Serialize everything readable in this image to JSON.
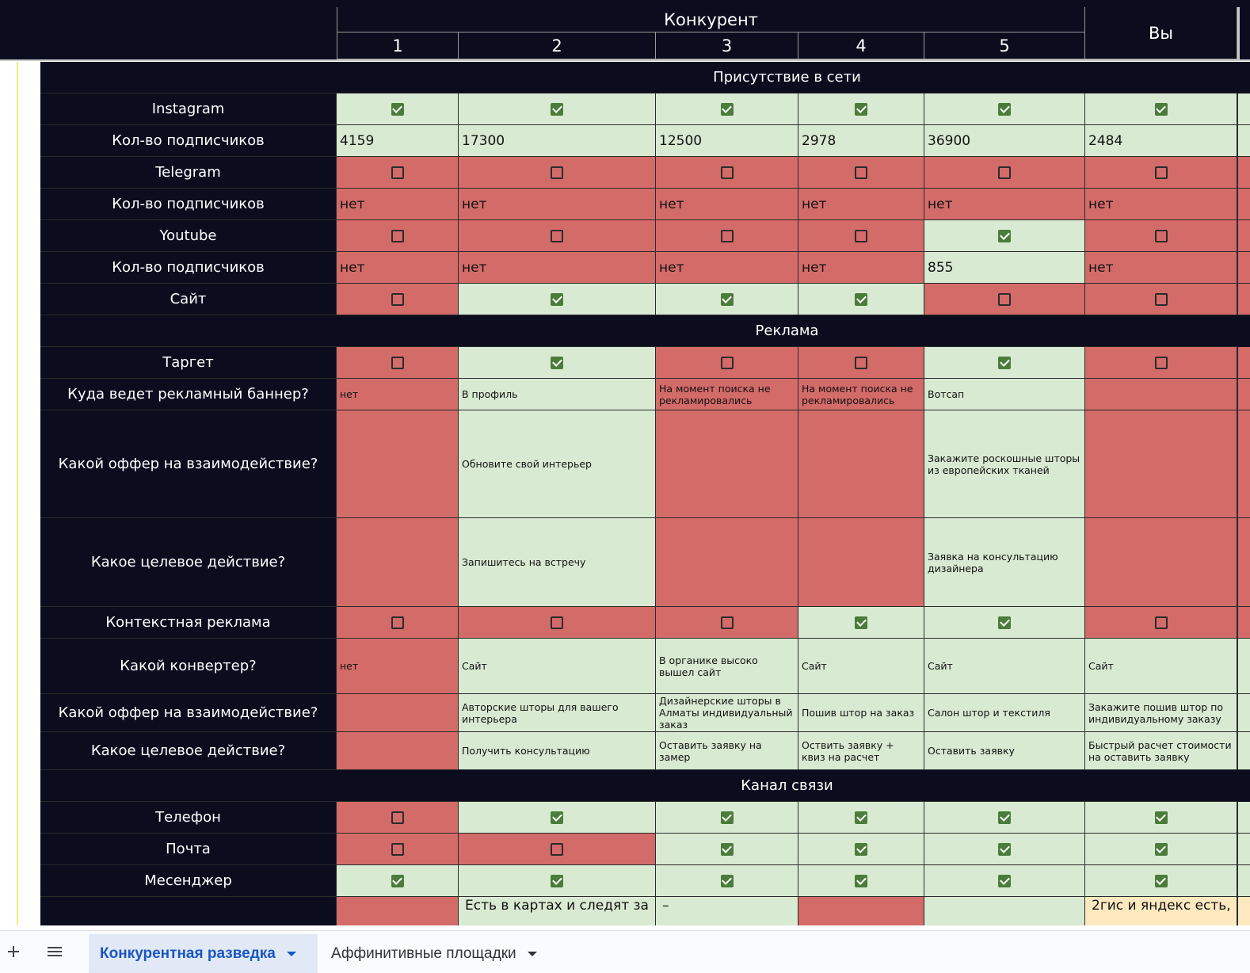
{
  "header": {
    "group_label": "Конкурент",
    "columns": [
      "1",
      "2",
      "3",
      "4",
      "5"
    ],
    "you_label": "Вы"
  },
  "rows": [
    {
      "type": "section",
      "label": "Присутствие в сети"
    },
    {
      "type": "row",
      "label": "Instagram",
      "kind": "check",
      "cells": [
        {
          "v": true,
          "c": "g"
        },
        {
          "v": true,
          "c": "g"
        },
        {
          "v": true,
          "c": "g"
        },
        {
          "v": true,
          "c": "g"
        },
        {
          "v": true,
          "c": "g"
        },
        {
          "v": true,
          "c": "g"
        }
      ]
    },
    {
      "type": "row",
      "label": "Кол-во подписчиков",
      "kind": "num",
      "cells": [
        {
          "t": "4159",
          "c": "g"
        },
        {
          "t": "17300",
          "c": "g"
        },
        {
          "t": "12500",
          "c": "g"
        },
        {
          "t": "2978",
          "c": "g"
        },
        {
          "t": "36900",
          "c": "g"
        },
        {
          "t": "2484",
          "c": "g"
        }
      ]
    },
    {
      "type": "row",
      "label": "Telegram",
      "kind": "check",
      "cells": [
        {
          "v": false,
          "c": "r"
        },
        {
          "v": false,
          "c": "r"
        },
        {
          "v": false,
          "c": "r"
        },
        {
          "v": false,
          "c": "r"
        },
        {
          "v": false,
          "c": "r"
        },
        {
          "v": false,
          "c": "r"
        }
      ]
    },
    {
      "type": "row",
      "label": "Кол-во подписчиков",
      "kind": "num",
      "cells": [
        {
          "t": "нет",
          "c": "r"
        },
        {
          "t": "нет",
          "c": "r"
        },
        {
          "t": "нет",
          "c": "r"
        },
        {
          "t": "нет",
          "c": "r"
        },
        {
          "t": "нет",
          "c": "r"
        },
        {
          "t": "нет",
          "c": "r"
        }
      ]
    },
    {
      "type": "row",
      "label": "Youtube",
      "kind": "check",
      "cells": [
        {
          "v": false,
          "c": "r"
        },
        {
          "v": false,
          "c": "r"
        },
        {
          "v": false,
          "c": "r"
        },
        {
          "v": false,
          "c": "r"
        },
        {
          "v": true,
          "c": "g"
        },
        {
          "v": false,
          "c": "r"
        }
      ]
    },
    {
      "type": "row",
      "label": "Кол-во подписчиков",
      "kind": "num",
      "cells": [
        {
          "t": "нет",
          "c": "r"
        },
        {
          "t": "нет",
          "c": "r"
        },
        {
          "t": "нет",
          "c": "r"
        },
        {
          "t": "нет",
          "c": "r"
        },
        {
          "t": "855",
          "c": "g"
        },
        {
          "t": "нет",
          "c": "r"
        }
      ]
    },
    {
      "type": "row",
      "label": "Сайт",
      "kind": "check",
      "cells": [
        {
          "v": false,
          "c": "r"
        },
        {
          "v": true,
          "c": "g"
        },
        {
          "v": true,
          "c": "g"
        },
        {
          "v": true,
          "c": "g"
        },
        {
          "v": false,
          "c": "r"
        },
        {
          "v": false,
          "c": "r"
        }
      ]
    },
    {
      "type": "section",
      "label": "Реклама"
    },
    {
      "type": "row",
      "label": "Таргет",
      "kind": "check",
      "cells": [
        {
          "v": false,
          "c": "r"
        },
        {
          "v": true,
          "c": "g"
        },
        {
          "v": false,
          "c": "r"
        },
        {
          "v": false,
          "c": "r"
        },
        {
          "v": true,
          "c": "g"
        },
        {
          "v": false,
          "c": "r"
        }
      ]
    },
    {
      "type": "row",
      "label": "Куда ведет рекламный баннер?",
      "kind": "small",
      "cells": [
        {
          "t": "нет",
          "c": "r"
        },
        {
          "t": "В профиль",
          "c": "g"
        },
        {
          "t": "На момент поиска не рекламировались",
          "c": "r"
        },
        {
          "t": "На момент поиска не рекламировались",
          "c": "r"
        },
        {
          "t": "Вотсап",
          "c": "g"
        },
        {
          "t": "",
          "c": "r"
        }
      ]
    },
    {
      "type": "row",
      "label": "Какой оффер на взаимодействие?",
      "kind": "small",
      "cells": [
        {
          "t": "",
          "c": "r"
        },
        {
          "t": "Обновите свой интерьер",
          "c": "g"
        },
        {
          "t": "",
          "c": "r"
        },
        {
          "t": "",
          "c": "r"
        },
        {
          "t": "Закажите роскошные шторы из европейских тканей",
          "c": "g"
        },
        {
          "t": "",
          "c": "r"
        }
      ]
    },
    {
      "type": "row",
      "label": "Какое целевое действие?",
      "kind": "small",
      "cells": [
        {
          "t": "",
          "c": "r"
        },
        {
          "t": "Запишитесь на встречу",
          "c": "g"
        },
        {
          "t": "",
          "c": "r"
        },
        {
          "t": "",
          "c": "r"
        },
        {
          "t": "Заявка на консультацию дизайнера",
          "c": "g"
        },
        {
          "t": "",
          "c": "r"
        }
      ]
    },
    {
      "type": "row",
      "label": "Контекстная реклама",
      "kind": "check",
      "cells": [
        {
          "v": false,
          "c": "r"
        },
        {
          "v": false,
          "c": "r"
        },
        {
          "v": false,
          "c": "r"
        },
        {
          "v": true,
          "c": "g"
        },
        {
          "v": true,
          "c": "g"
        },
        {
          "v": false,
          "c": "r"
        }
      ]
    },
    {
      "type": "row",
      "label": "Какой конвертер?",
      "kind": "small",
      "cells": [
        {
          "t": "нет",
          "c": "r"
        },
        {
          "t": "Сайт",
          "c": "g"
        },
        {
          "t": "В органике высоко вышел сайт",
          "c": "g"
        },
        {
          "t": "Сайт",
          "c": "g"
        },
        {
          "t": "Сайт",
          "c": "g"
        },
        {
          "t": "Сайт",
          "c": "g"
        }
      ]
    },
    {
      "type": "row",
      "label": "Какой оффер на взаимодействие?",
      "kind": "small",
      "cells": [
        {
          "t": "",
          "c": "r"
        },
        {
          "t": "Авторские шторы для вашего интерьера",
          "c": "g"
        },
        {
          "t": "Дизайнерские шторы в Алматы индивидуальный заказ",
          "c": "g"
        },
        {
          "t": "Пошив штор на заказ",
          "c": "g"
        },
        {
          "t": "Салон штор и текстиля",
          "c": "g"
        },
        {
          "t": "Закажите пошив штор по индивидуальному заказу",
          "c": "g"
        }
      ]
    },
    {
      "type": "row",
      "label": "Какое целевое действие?",
      "kind": "small",
      "cells": [
        {
          "t": "",
          "c": "r"
        },
        {
          "t": "Получить консультацию",
          "c": "g"
        },
        {
          "t": "Оставить заявку на замер",
          "c": "g"
        },
        {
          "t": "Оствить заявку + квиз на расчет",
          "c": "g"
        },
        {
          "t": "Оставить заявку",
          "c": "g"
        },
        {
          "t": "Быстрый расчет стоимости на оставить заявку",
          "c": "g"
        }
      ]
    },
    {
      "type": "section",
      "label": "Канал связи"
    },
    {
      "type": "row",
      "label": "Телефон",
      "kind": "check",
      "cells": [
        {
          "v": false,
          "c": "r"
        },
        {
          "v": true,
          "c": "g"
        },
        {
          "v": true,
          "c": "g"
        },
        {
          "v": true,
          "c": "g"
        },
        {
          "v": true,
          "c": "g"
        },
        {
          "v": true,
          "c": "g"
        }
      ]
    },
    {
      "type": "row",
      "label": "Почта",
      "kind": "check",
      "cells": [
        {
          "v": false,
          "c": "r"
        },
        {
          "v": false,
          "c": "r"
        },
        {
          "v": true,
          "c": "g"
        },
        {
          "v": true,
          "c": "g"
        },
        {
          "v": true,
          "c": "g"
        },
        {
          "v": true,
          "c": "g"
        }
      ]
    },
    {
      "type": "row",
      "label": "Месенджер",
      "kind": "check",
      "cells": [
        {
          "v": true,
          "c": "g"
        },
        {
          "v": true,
          "c": "g"
        },
        {
          "v": true,
          "c": "g"
        },
        {
          "v": true,
          "c": "g"
        },
        {
          "v": true,
          "c": "g"
        },
        {
          "v": true,
          "c": "g"
        }
      ]
    },
    {
      "type": "row",
      "label": "",
      "kind": "big",
      "cells": [
        {
          "t": "",
          "c": "r"
        },
        {
          "t": "Есть в картах и следят за",
          "c": "g"
        },
        {
          "t": "–",
          "c": "g"
        },
        {
          "t": "",
          "c": "r"
        },
        {
          "t": "",
          "c": "g"
        },
        {
          "t": "2гис и яндекс есть,",
          "c": "y"
        }
      ]
    }
  ],
  "tabs": {
    "add_icon": "plus-icon",
    "menu_icon": "hamburger-menu-icon",
    "items": [
      {
        "label": "Конкурентная разведка",
        "active": true
      },
      {
        "label": "Аффинитивные площадки",
        "active": false
      }
    ]
  },
  "colors": {
    "dark": "#0b0d1e",
    "green": "#d9ead3",
    "red": "#d36b69",
    "yellow": "#fde9c0",
    "check": "#4b7c3a",
    "tab_active": "#1a56c4"
  }
}
